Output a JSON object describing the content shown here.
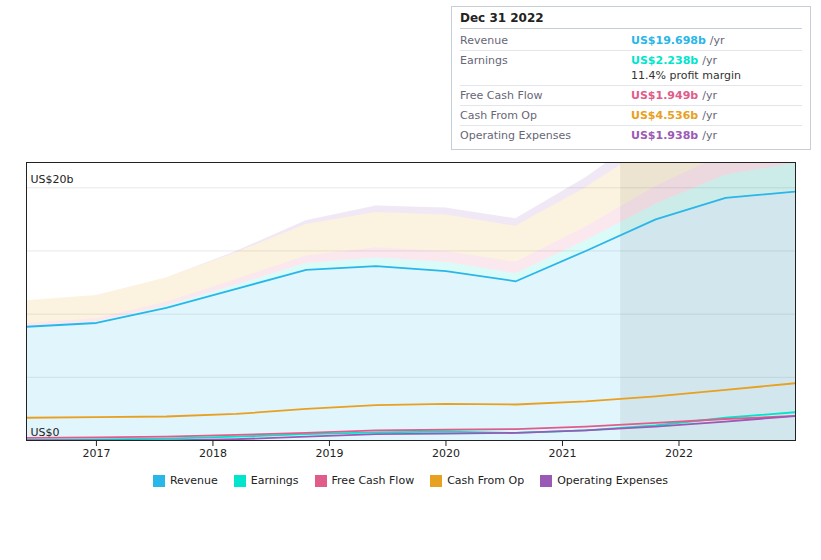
{
  "chart_data": {
    "type": "area",
    "x": [
      2016.4,
      2017.0,
      2017.6,
      2018.2,
      2018.8,
      2019.4,
      2020.0,
      2020.6,
      2021.2,
      2021.8,
      2022.4,
      2023.0
    ],
    "series": [
      {
        "name": "Revenue",
        "color": "#29b6e8",
        "values": [
          9.0,
          9.3,
          10.5,
          12.0,
          13.5,
          13.8,
          13.4,
          12.6,
          15.0,
          17.5,
          19.2,
          19.698
        ]
      },
      {
        "name": "Earnings",
        "color": "#00e5cc",
        "values": [
          0.05,
          0.08,
          0.15,
          0.3,
          0.5,
          0.65,
          0.7,
          0.6,
          0.8,
          1.2,
          1.8,
          2.238
        ]
      },
      {
        "name": "Free Cash Flow",
        "color": "#e05c8a",
        "values": [
          0.2,
          0.25,
          0.3,
          0.45,
          0.6,
          0.8,
          0.85,
          0.9,
          1.1,
          1.4,
          1.7,
          1.949
        ]
      },
      {
        "name": "Cash From Op",
        "color": "#e8a020",
        "values": [
          1.8,
          1.85,
          1.9,
          2.1,
          2.5,
          2.8,
          2.9,
          2.85,
          3.1,
          3.5,
          4.0,
          4.536
        ]
      },
      {
        "name": "Operating Expenses",
        "color": "#9b59b6",
        "values": [
          0.0,
          0.0,
          0.0,
          0.1,
          0.3,
          0.5,
          0.55,
          0.6,
          0.8,
          1.1,
          1.5,
          1.938
        ]
      }
    ],
    "xlim": [
      2016.4,
      2023.0
    ],
    "xticks": [
      2017,
      2018,
      2019,
      2020,
      2021,
      2022
    ],
    "ylim": [
      0,
      22
    ],
    "yticks": [
      0,
      5,
      10,
      15,
      20
    ],
    "grid": true,
    "tick_labels": "x",
    "legend": "bottom",
    "annotations": [
      {
        "text": "US$20b",
        "y": 20
      },
      {
        "text": "US$0",
        "y": 0
      }
    ],
    "highlight_x": [
      2021.5,
      2023.0
    ],
    "infobox": {
      "title": "Dec 31 2022",
      "rows": [
        {
          "label": "Revenue",
          "value": "US$19.698b",
          "suffix": "/yr",
          "color": "#29b6e8"
        },
        {
          "label": "Earnings",
          "value": "US$2.238b",
          "suffix": "/yr",
          "color": "#00e5cc",
          "note": "11.4% profit margin"
        },
        {
          "label": "Free Cash Flow",
          "value": "US$1.949b",
          "suffix": "/yr",
          "color": "#e05c8a"
        },
        {
          "label": "Cash From Op",
          "value": "US$4.536b",
          "suffix": "/yr",
          "color": "#e8a020"
        },
        {
          "label": "Operating Expenses",
          "value": "US$1.938b",
          "suffix": "/yr",
          "color": "#9b59b6"
        }
      ]
    }
  }
}
